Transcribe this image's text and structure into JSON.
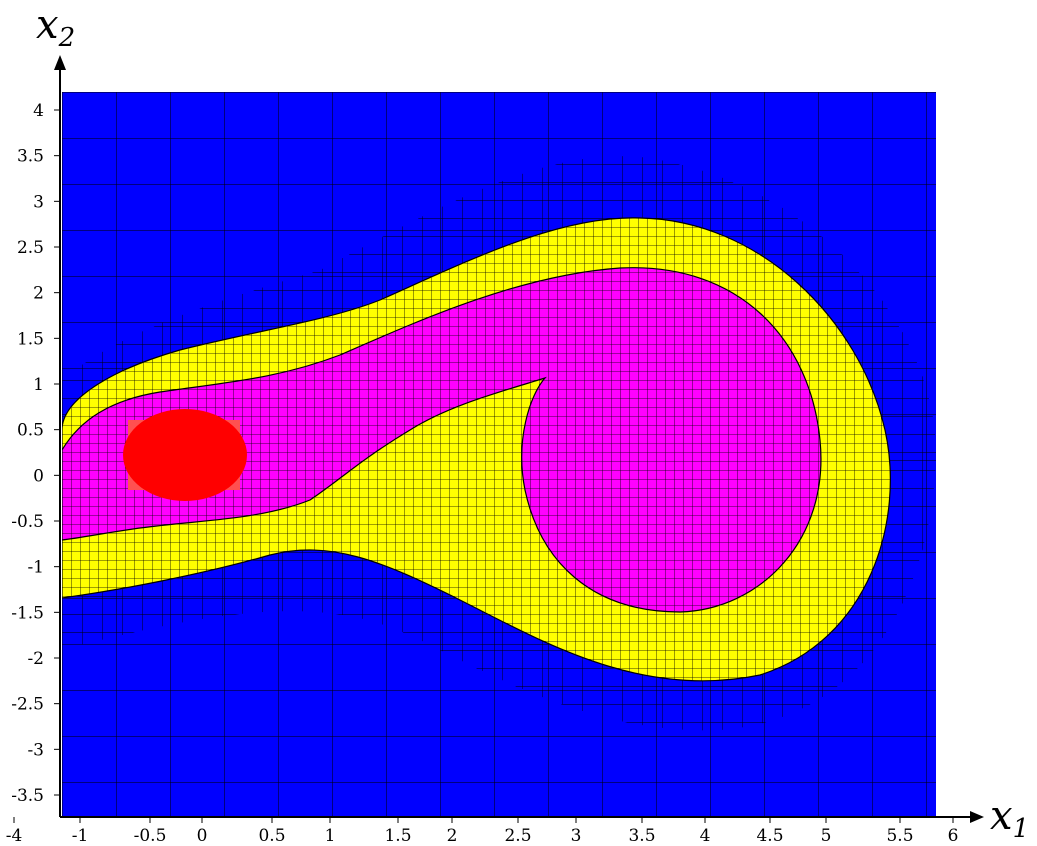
{
  "chart_data": {
    "type": "heatmap",
    "description_kind": "region plot over adaptive grid",
    "xlabel": {
      "base": "x",
      "sub": "1"
    },
    "ylabel": {
      "base": "x",
      "sub": "2"
    },
    "x_ticks": [
      "-4",
      "-1",
      "-0.5",
      "0",
      "0.5",
      "1",
      "1.5",
      "2",
      "2.5",
      "3",
      "3.5",
      "4",
      "4.5",
      "5",
      "5.5",
      "6"
    ],
    "y_ticks": [
      "4",
      "3.5",
      "3",
      "2.5",
      "2",
      "1.5",
      "1",
      "0.5",
      "0",
      "-0.5",
      "-1",
      "-1.5",
      "-2",
      "-2.5",
      "-3",
      "-3.5",
      "-4"
    ],
    "xlim": [
      -1.5,
      5.9
    ],
    "ylim": [
      -4,
      4.2
    ],
    "grid": "adaptive subdivision boxes (fine near region boundaries)",
    "regions": [
      {
        "color": "#0000ff"
      },
      {
        "color": "#ffff00"
      },
      {
        "color": "#ff00ff"
      },
      {
        "color": "#ff0000"
      }
    ]
  }
}
